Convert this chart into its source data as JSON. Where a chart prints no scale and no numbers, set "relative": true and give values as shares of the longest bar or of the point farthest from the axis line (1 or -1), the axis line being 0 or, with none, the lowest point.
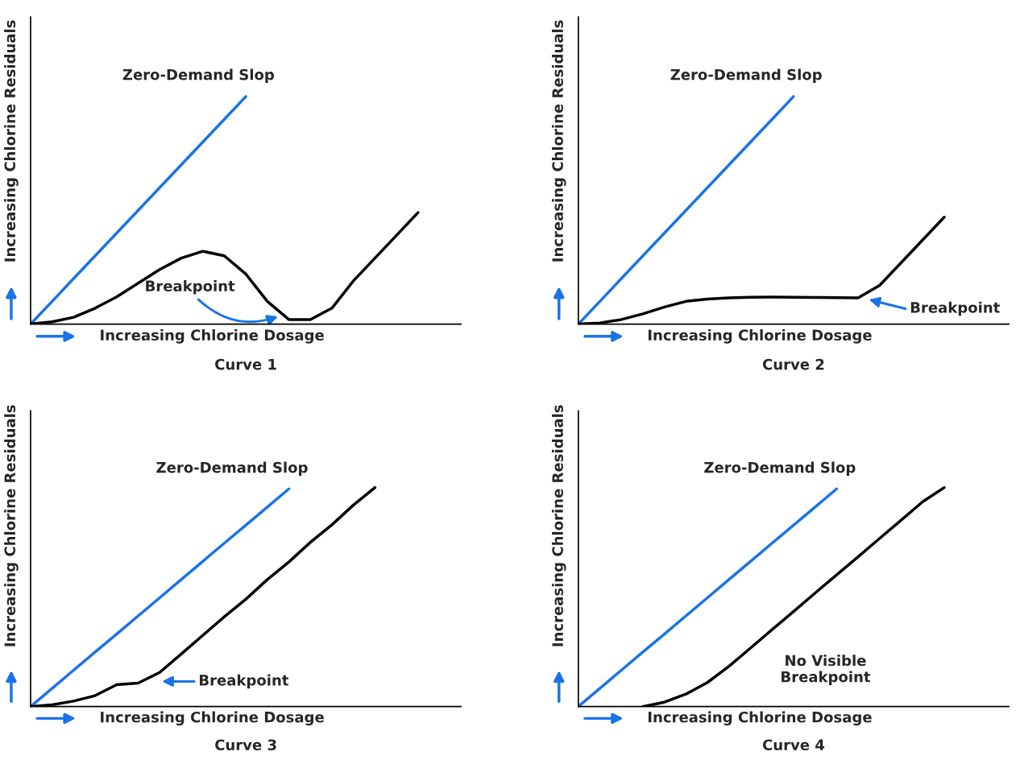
{
  "chart_data": [
    {
      "type": "line",
      "relative": true,
      "title": "Curve 1",
      "xlabel": "Increasing Chlorine Dosage",
      "ylabel": "Increasing Chlorine Residuals",
      "categories": [
        null,
        null,
        null,
        null,
        null,
        null,
        null,
        null,
        null,
        null,
        null,
        null,
        null,
        null,
        null,
        null,
        null,
        null,
        null,
        null,
        null
      ],
      "series": [
        {
          "color": "#1a73e8",
          "values": [
            0,
            0.1,
            0.2,
            0.3,
            0.4,
            0.5,
            0.6,
            0.7,
            0.8,
            0.9,
            1.0,
            null,
            null,
            null,
            null,
            null,
            null,
            null,
            null,
            null,
            null
          ]
        },
        {
          "color": "#000000",
          "values": [
            0,
            0.01,
            0.03,
            0.07,
            0.12,
            0.18,
            0.24,
            0.29,
            0.32,
            0.3,
            0.22,
            0.1,
            0.02,
            0.02,
            0.07,
            0.19,
            0.29,
            0.39,
            0.49,
            null,
            null
          ]
        }
      ],
      "annotations": [
        "Zero-Demand Slop",
        "Breakpoint"
      ]
    },
    {
      "type": "line",
      "relative": true,
      "title": "Curve 2",
      "xlabel": "Increasing Chlorine Dosage",
      "ylabel": "Increasing Chlorine Residuals",
      "categories": [
        null,
        null,
        null,
        null,
        null,
        null,
        null,
        null,
        null,
        null,
        null,
        null,
        null,
        null,
        null,
        null,
        null,
        null,
        null,
        null,
        null
      ],
      "series": [
        {
          "color": "#1a73e8",
          "values": [
            0,
            0.1,
            0.2,
            0.3,
            0.4,
            0.5,
            0.6,
            0.7,
            0.8,
            0.9,
            1.0,
            null,
            null,
            null,
            null,
            null,
            null,
            null,
            null,
            null,
            null
          ]
        },
        {
          "color": "#000000",
          "values": [
            0,
            0.005,
            0.02,
            0.045,
            0.075,
            0.1,
            0.11,
            0.115,
            0.118,
            0.119,
            0.118,
            0.117,
            0.116,
            0.115,
            0.17,
            0.27,
            0.37,
            0.47,
            null,
            null,
            null
          ]
        }
      ],
      "annotations": [
        "Zero-Demand Slop",
        "Breakpoint"
      ]
    },
    {
      "type": "line",
      "relative": true,
      "title": "Curve 3",
      "xlabel": "Increasing Chlorine Dosage",
      "ylabel": "Increasing Chlorine Residuals",
      "categories": [
        null,
        null,
        null,
        null,
        null,
        null,
        null,
        null,
        null,
        null,
        null,
        null,
        null,
        null,
        null,
        null,
        null,
        null,
        null,
        null,
        null
      ],
      "series": [
        {
          "color": "#1a73e8",
          "values": [
            0,
            0.083,
            0.166,
            0.249,
            0.331,
            0.414,
            0.497,
            0.58,
            0.663,
            0.746,
            0.828,
            0.911,
            0.994,
            null,
            null,
            null,
            null,
            null,
            null,
            null,
            null
          ]
        },
        {
          "color": "#000000",
          "values": [
            0,
            0.008,
            0.025,
            0.05,
            0.1,
            0.107,
            0.156,
            0.24,
            0.325,
            0.41,
            0.49,
            0.58,
            0.66,
            0.75,
            0.83,
            0.92,
            1.0,
            null,
            null,
            null,
            null
          ]
        }
      ],
      "annotations": [
        "Zero-Demand Slop",
        "Breakpoint"
      ]
    },
    {
      "type": "line",
      "relative": true,
      "title": "Curve 4",
      "xlabel": "Increasing Chlorine Dosage",
      "ylabel": "Increasing Chlorine Residuals",
      "categories": [
        null,
        null,
        null,
        null,
        null,
        null,
        null,
        null,
        null,
        null,
        null,
        null,
        null,
        null,
        null,
        null,
        null,
        null,
        null,
        null,
        null
      ],
      "series": [
        {
          "color": "#1a73e8",
          "values": [
            0,
            0.083,
            0.166,
            0.249,
            0.331,
            0.414,
            0.497,
            0.58,
            0.663,
            0.746,
            0.828,
            0.911,
            0.994,
            null,
            null,
            null,
            null,
            null,
            null,
            null,
            null
          ]
        },
        {
          "color": "#000000",
          "values": [
            null,
            null,
            null,
            0.0,
            0.02,
            0.057,
            0.11,
            0.184,
            0.267,
            0.351,
            0.434,
            0.518,
            0.601,
            0.684,
            0.768,
            0.851,
            0.935,
            1.0,
            null,
            null,
            null
          ]
        }
      ],
      "annotations": [
        "Zero-Demand Slop",
        "No Visible\nBreakpoint"
      ]
    }
  ]
}
